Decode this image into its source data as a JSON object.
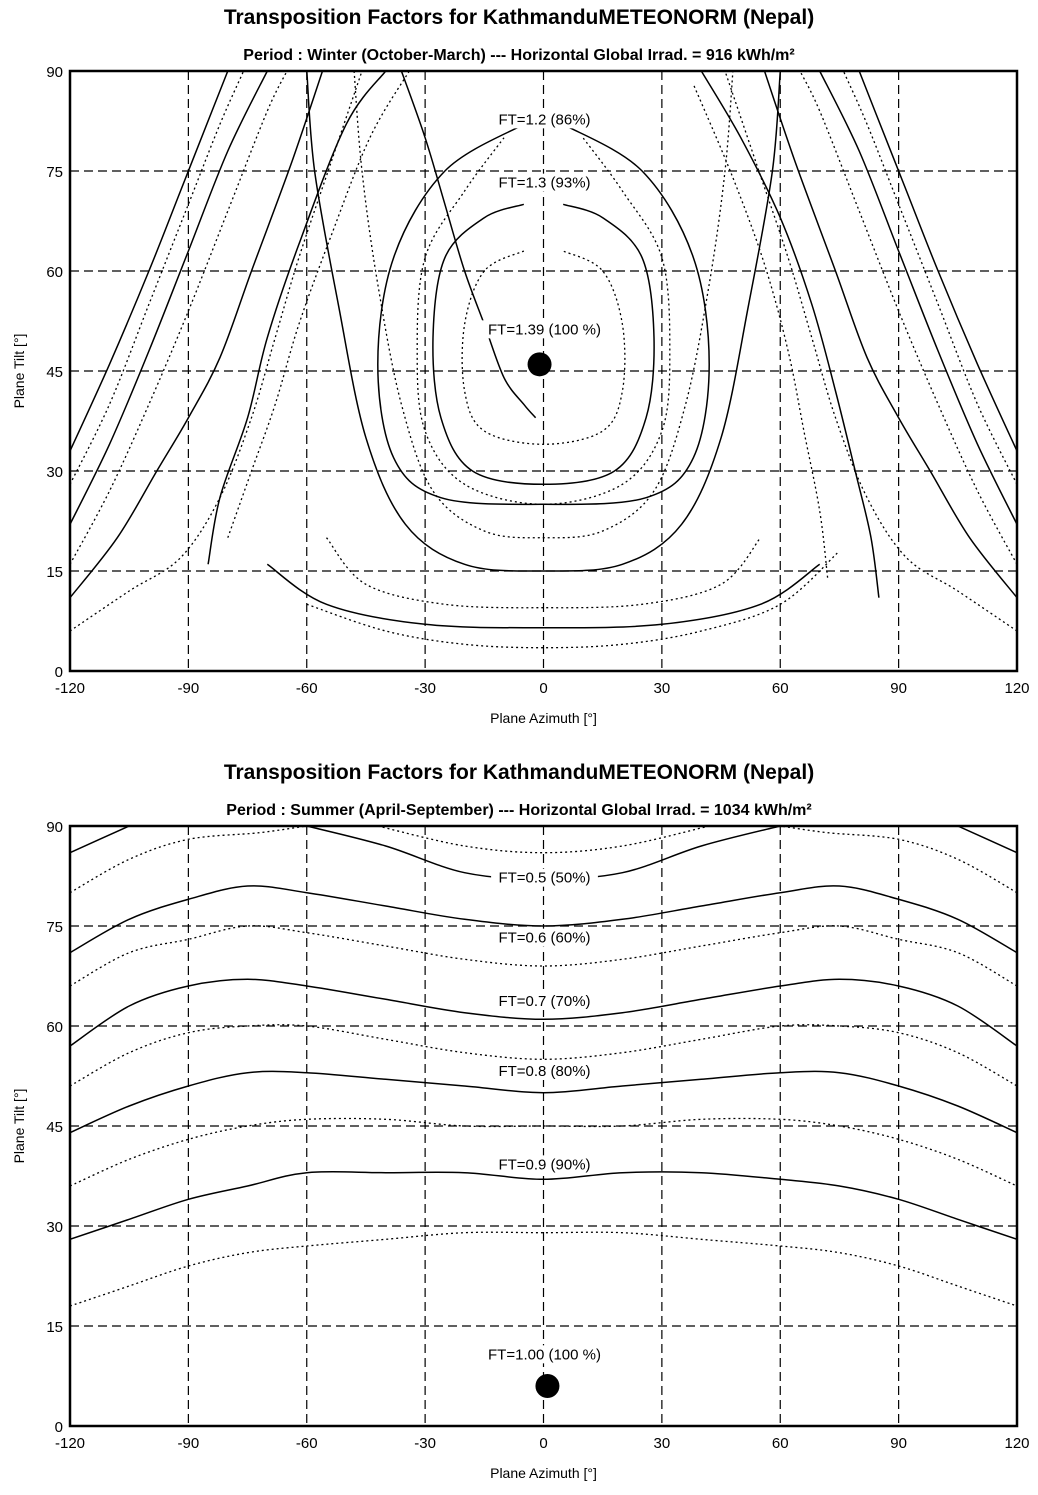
{
  "chart_data": [
    {
      "type": "contour",
      "title": "Transposition Factors for KathmanduMETEONORM  (Nepal)",
      "subtitle": "Period :  Winter (October-March)  ---  Horizontal Global Irrad. =  916 kWh/m²",
      "xlabel": "Plane Azimuth [°]",
      "ylabel": "Plane Tilt [°]",
      "xlim": [
        -120,
        120
      ],
      "ylim": [
        0,
        90
      ],
      "xticks": [
        "-120",
        "-90",
        "-60",
        "-30",
        "0",
        "30",
        "60",
        "90",
        "120"
      ],
      "yticks": [
        "0",
        "15",
        "30",
        "45",
        "60",
        "75",
        "90"
      ],
      "grid": true,
      "optimum": {
        "azimuth": -1,
        "tilt": 46,
        "label": "FT=1.39 (100 %)"
      },
      "contour_labels": [
        {
          "text": "FT=1.2 (86%)",
          "azimuth": 0,
          "tilt": 82
        },
        {
          "text": "FT=1.3 (93%)",
          "azimuth": 0,
          "tilt": 72.5
        },
        {
          "text": "FT=1.39 (100 %)",
          "azimuth": 0,
          "tilt": 50.5
        }
      ]
    },
    {
      "type": "contour",
      "title": "Transposition Factors for KathmanduMETEONORM  (Nepal)",
      "subtitle": "Period :  Summer (April-September)  ---  Horizontal Global Irrad. = 1034 kWh/m²",
      "xlabel": "Plane Azimuth [°]",
      "ylabel": "Plane Tilt [°]",
      "xlim": [
        -120,
        120
      ],
      "ylim": [
        0,
        90
      ],
      "xticks": [
        "-120",
        "-90",
        "-60",
        "-30",
        "0",
        "30",
        "60",
        "90",
        "120"
      ],
      "yticks": [
        "0",
        "15",
        "30",
        "45",
        "60",
        "75",
        "90"
      ],
      "grid": true,
      "optimum": {
        "azimuth": 1,
        "tilt": 6,
        "label": "FT=1.00 (100 %)"
      },
      "contour_labels": [
        {
          "text": "FT=0.5 (50%)",
          "azimuth": 0,
          "tilt": 81.5
        },
        {
          "text": "FT=0.6 (60%)",
          "azimuth": 0,
          "tilt": 72.5
        },
        {
          "text": "FT=0.7 (70%)",
          "azimuth": 0,
          "tilt": 63
        },
        {
          "text": "FT=0.8 (80%)",
          "azimuth": 0,
          "tilt": 52.5
        },
        {
          "text": "FT=0.9 (90%)",
          "azimuth": 0,
          "tilt": 38.5
        },
        {
          "text": "FT=1.00 (100 %)",
          "azimuth": 0,
          "tilt": 10
        }
      ]
    }
  ]
}
